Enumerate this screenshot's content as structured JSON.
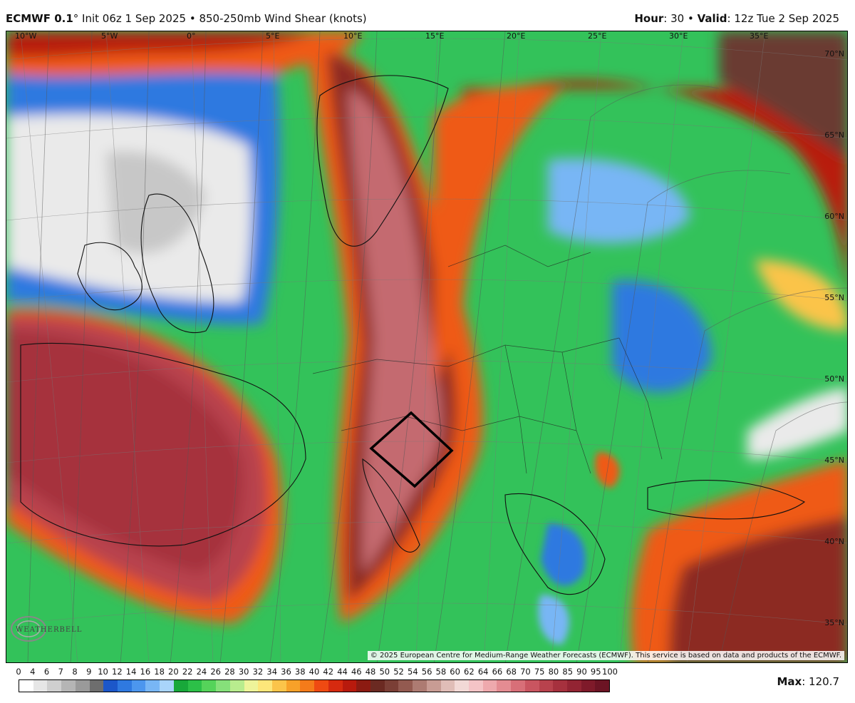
{
  "header": {
    "model": "ECMWF 0.1",
    "degree": "°",
    "init_text": " Init 06z 1 Sep 2025",
    "bullet": " • ",
    "product": "850-250mb Wind Shear (knots)",
    "hour_label": "Hour",
    "hour_value": ": 30",
    "valid_label": "Valid",
    "valid_value": ": 12z Tue 2 Sep 2025"
  },
  "longitudes": [
    "10°W",
    "5°W",
    "0°",
    "5°E",
    "10°E",
    "15°E",
    "20°E",
    "25°E",
    "30°E",
    "35°E"
  ],
  "latitudes": [
    "70°N",
    "65°N",
    "60°N",
    "55°N",
    "50°N",
    "45°N",
    "40°N",
    "35°N"
  ],
  "copyright": "© 2025 European Centre for Medium-Range Weather Forecasts (ECMWF). This service is based on data and products of the ECMWF.",
  "logo_text": "WEATHERBELL",
  "colorbar": {
    "labels": [
      "0",
      "4",
      "6",
      "7",
      "8",
      "9",
      "10",
      "12",
      "14",
      "16",
      "18",
      "20",
      "22",
      "24",
      "26",
      "28",
      "30",
      "32",
      "34",
      "36",
      "38",
      "40",
      "42",
      "44",
      "46",
      "48",
      "50",
      "52",
      "54",
      "56",
      "58",
      "60",
      "62",
      "64",
      "66",
      "68",
      "70",
      "75",
      "80",
      "85",
      "90",
      "95",
      "100"
    ],
    "colors": [
      "#ffffff",
      "#e6e6e6",
      "#cfcfcf",
      "#b5b5b5",
      "#9a9a9a",
      "#6e6e6e",
      "#1c57c9",
      "#2f79e0",
      "#4c96ee",
      "#78b6f5",
      "#a9d4fa",
      "#18a83a",
      "#2cc048",
      "#55d35a",
      "#86e07a",
      "#b8ec8e",
      "#eef49a",
      "#fde67a",
      "#fbc44a",
      "#f7a129",
      "#f47b1a",
      "#ef4a12",
      "#d62a0f",
      "#b81a0d",
      "#8c1b12",
      "#6b2a22",
      "#7b3f36",
      "#935a50",
      "#ad7b72",
      "#c89c94",
      "#e0bdb7",
      "#f2d9d6",
      "#f4c4c6",
      "#eea9ad",
      "#e48c92",
      "#d86f78",
      "#c95560",
      "#b8424d",
      "#a6313e",
      "#932433",
      "#7f1a2a",
      "#6c1424"
    ]
  },
  "max_label": "Max",
  "max_value": ": 120.7",
  "map_colors": {
    "ocean_green": "#33c25a",
    "shear_red_dark": "#a6313e",
    "shear_orange": "#ef5a14",
    "shear_blue": "#2f79e0",
    "shear_white": "#eeeeee",
    "shear_brown": "#6b3a30"
  }
}
